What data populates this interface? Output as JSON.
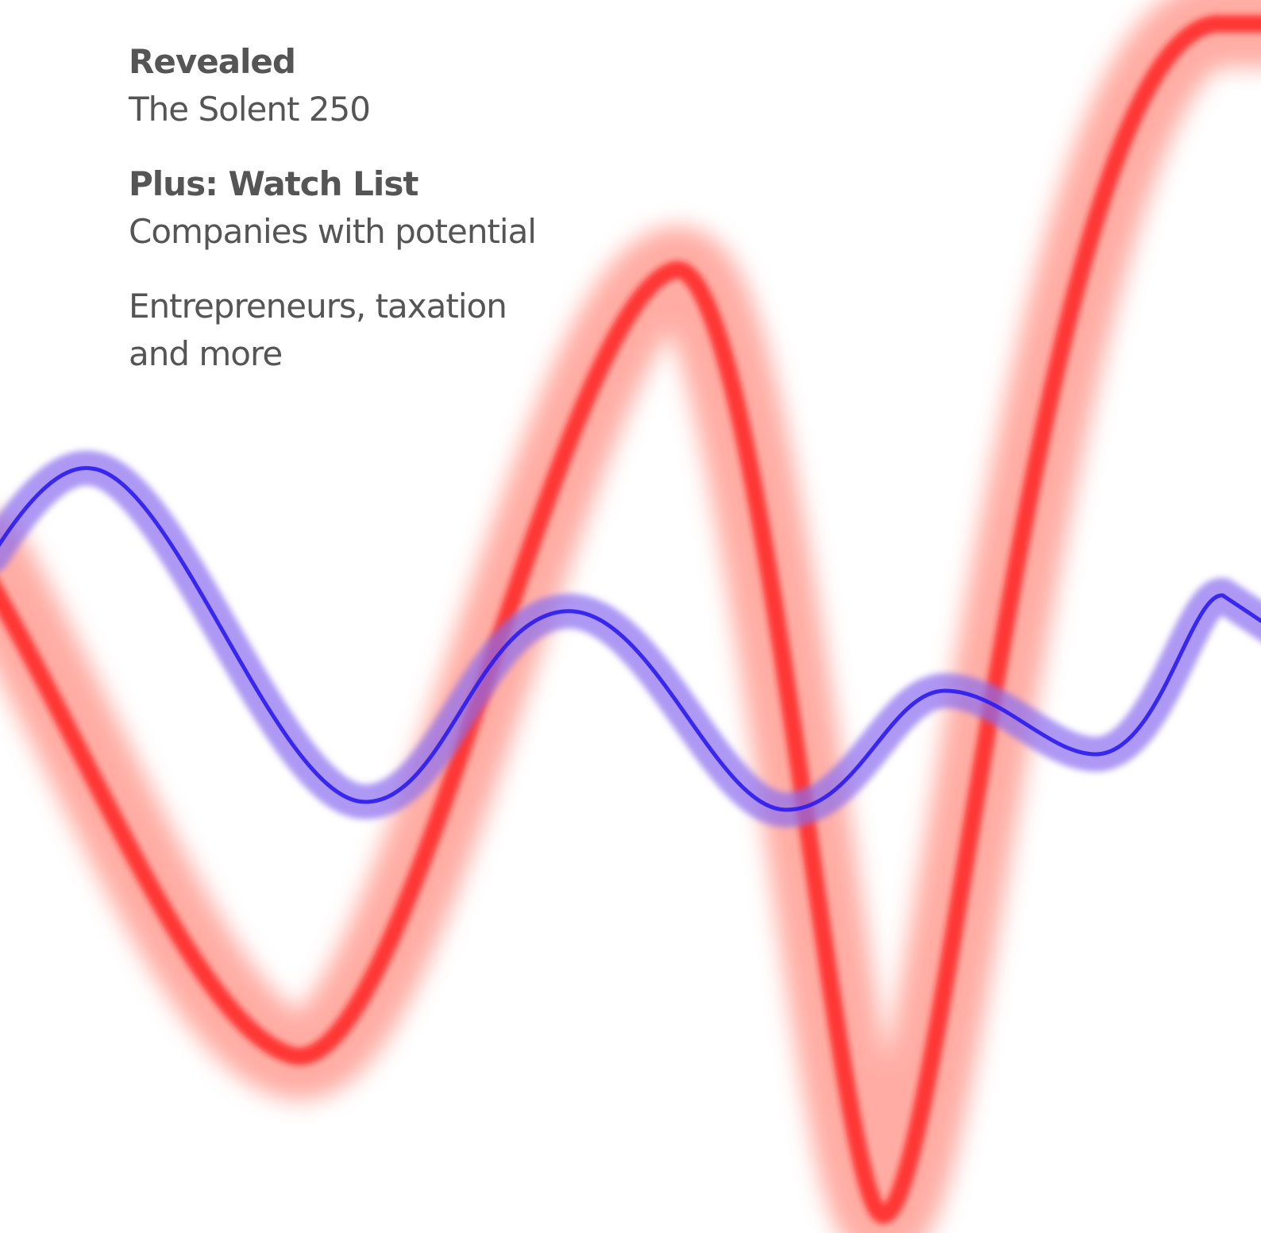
{
  "cover": {
    "headline": "Revealed",
    "subheadline": "The Solent 250",
    "feature_title": "Plus: Watch List",
    "feature_subtitle": "Companies with potential",
    "extra_lines": [
      "Entrepreneurs, taxation",
      "and more"
    ]
  }
}
